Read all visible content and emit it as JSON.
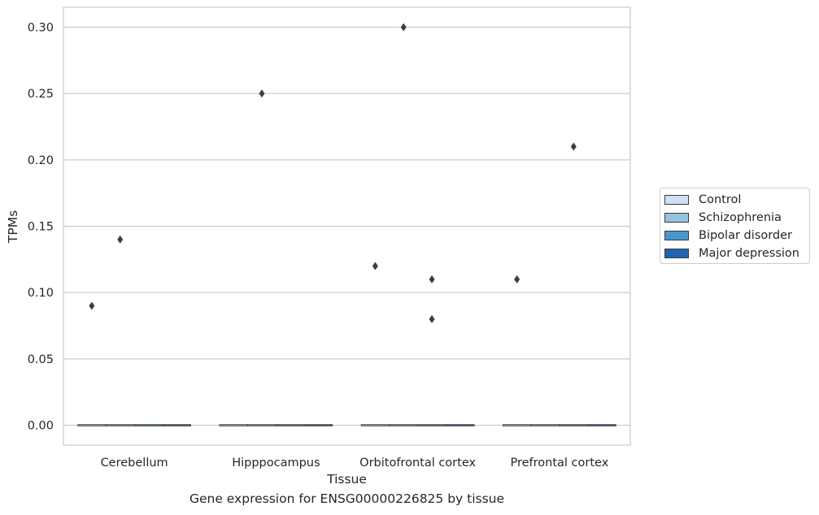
{
  "chart_data": {
    "type": "box",
    "title": "",
    "caption": "Gene expression for ENSG00000226825 by tissue",
    "xlabel": "Tissue",
    "ylabel": "TPMs",
    "ylim": [
      -0.015,
      0.315
    ],
    "yticks": [
      "0.00",
      "0.05",
      "0.10",
      "0.15",
      "0.20",
      "0.25",
      "0.30"
    ],
    "grid": "horizontal",
    "legend_position": "right",
    "categories": [
      "Cerebellum",
      "Hipppocampus",
      "Orbitofrontal cortex",
      "Prefrontal cortex"
    ],
    "series": [
      {
        "name": "Control",
        "color": "#d0e1f2",
        "medians": [
          0,
          0,
          0,
          0
        ],
        "outliers": [
          [
            0.09
          ],
          [],
          [
            0.12
          ],
          [
            0.11
          ]
        ]
      },
      {
        "name": "Schizophrenia",
        "color": "#94c4df",
        "medians": [
          0,
          0,
          0,
          0
        ],
        "outliers": [
          [
            0.14
          ],
          [
            0.25
          ],
          [
            0.3
          ],
          []
        ]
      },
      {
        "name": "Bipolar disorder",
        "color": "#4a98c9",
        "medians": [
          0,
          0,
          0,
          0
        ],
        "outliers": [
          [],
          [],
          [
            0.11,
            0.08
          ],
          [
            0.21
          ]
        ]
      },
      {
        "name": "Major depression",
        "color": "#2164ab",
        "medians": [
          0,
          0,
          0,
          0
        ],
        "outliers": [
          [],
          [],
          [],
          []
        ]
      }
    ]
  }
}
